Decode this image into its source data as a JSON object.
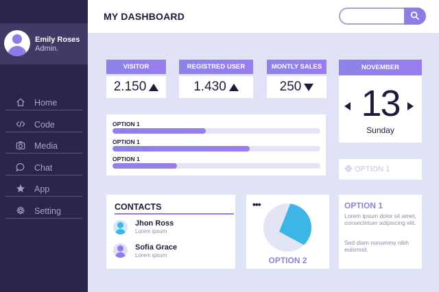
{
  "header": {
    "title": "MY DASHBOARD",
    "search_placeholder": ""
  },
  "profile": {
    "name": "Emily Roses",
    "role": "Admin."
  },
  "sidebar": {
    "items": [
      {
        "label": "Home",
        "icon": "home-icon"
      },
      {
        "label": "Code",
        "icon": "code-icon"
      },
      {
        "label": "Media",
        "icon": "camera-icon"
      },
      {
        "label": "Chat",
        "icon": "chat-icon"
      },
      {
        "label": "App",
        "icon": "star-icon"
      },
      {
        "label": "Setting",
        "icon": "gear-icon"
      }
    ]
  },
  "stats": [
    {
      "label": "VISITOR",
      "value": "2.150",
      "trend": "up"
    },
    {
      "label": "REGISTRED USER",
      "value": "1.430",
      "trend": "up"
    },
    {
      "label": "MONTLY SALES",
      "value": "250",
      "trend": "down"
    }
  ],
  "progress": [
    {
      "label": "OPTION 1",
      "percent": 45
    },
    {
      "label": "OPTION 1",
      "percent": 66
    },
    {
      "label": "OPTION 1",
      "percent": 31
    }
  ],
  "calendar": {
    "month": "NOVEMBER",
    "day": "13",
    "weekday": "Sunday"
  },
  "option_row": {
    "label": "OPTION 1"
  },
  "contacts": {
    "title": "CONTACTS",
    "items": [
      {
        "name": "Jhon Ross",
        "subtitle": "Lorem ipsum"
      },
      {
        "name": "Sofia Grace",
        "subtitle": "Lorem ipsum"
      }
    ]
  },
  "pie": {
    "label": "OPTION 2",
    "more": "•••",
    "slice_percent": 36
  },
  "info_card": {
    "title": "OPTION 1",
    "paragraph1": "Lorem ipsum dolor sit amet, consectetuer adipiscing elit.",
    "paragraph2": "Sed diam nonummy nibh euismod."
  },
  "colors": {
    "sidebar": "#2b2549",
    "accent": "#8f7be8",
    "background": "#dfe3f5",
    "pie_slice": "#3db5e6",
    "pie_rest": "#e3e5f4"
  }
}
